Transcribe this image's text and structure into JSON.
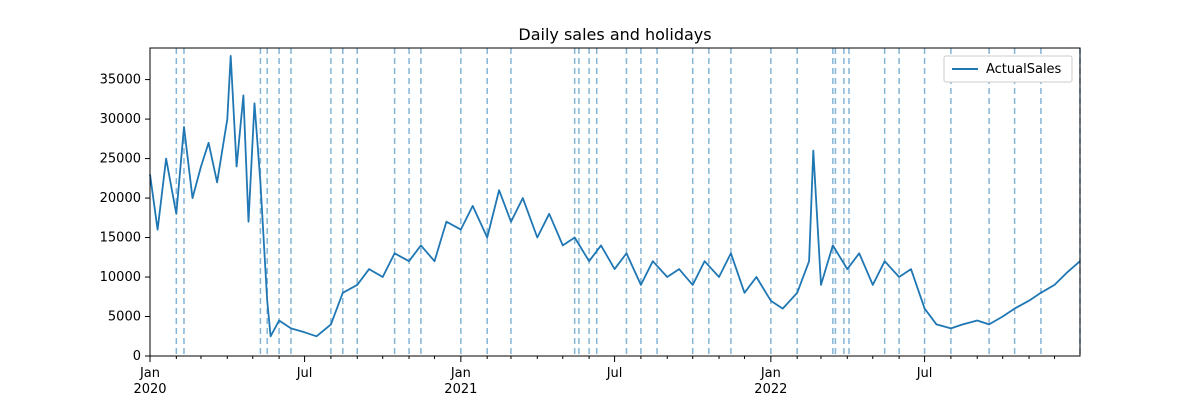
{
  "chart_data": {
    "type": "line",
    "title": "Daily sales and holidays",
    "xlabel": "",
    "ylabel": "",
    "x_range": [
      "2020-01-01",
      "2022-12-31"
    ],
    "ylim": [
      0,
      39000
    ],
    "y_ticks": [
      0,
      5000,
      10000,
      15000,
      20000,
      25000,
      30000,
      35000
    ],
    "y_tick_labels": [
      "0",
      "5000",
      "10000",
      "15000",
      "20000",
      "25000",
      "30000",
      "35000"
    ],
    "x_major_ticks": [
      {
        "date": "2020-01-01",
        "label": "Jan",
        "year": "2020"
      },
      {
        "date": "2020-07-01",
        "label": "Jul",
        "year": ""
      },
      {
        "date": "2021-01-01",
        "label": "Jan",
        "year": "2021"
      },
      {
        "date": "2021-07-01",
        "label": "Jul",
        "year": ""
      },
      {
        "date": "2022-01-01",
        "label": "Jan",
        "year": "2022"
      },
      {
        "date": "2022-07-01",
        "label": "Jul",
        "year": ""
      }
    ],
    "grid": false,
    "legend": {
      "placement": "top-right",
      "entries": [
        "ActualSales"
      ]
    },
    "series": [
      {
        "name": "ActualSales",
        "color": "#1f77b4",
        "points": [
          [
            "2020-01-01",
            23000
          ],
          [
            "2020-01-10",
            16000
          ],
          [
            "2020-01-20",
            25000
          ],
          [
            "2020-02-01",
            18000
          ],
          [
            "2020-02-10",
            29000
          ],
          [
            "2020-02-20",
            20000
          ],
          [
            "2020-03-01",
            24000
          ],
          [
            "2020-03-10",
            27000
          ],
          [
            "2020-03-20",
            22000
          ],
          [
            "2020-04-01",
            30000
          ],
          [
            "2020-04-05",
            38000
          ],
          [
            "2020-04-12",
            24000
          ],
          [
            "2020-04-20",
            33000
          ],
          [
            "2020-04-26",
            17000
          ],
          [
            "2020-05-03",
            32000
          ],
          [
            "2020-05-10",
            22000
          ],
          [
            "2020-05-18",
            7000
          ],
          [
            "2020-05-22",
            2500
          ],
          [
            "2020-06-01",
            4500
          ],
          [
            "2020-06-15",
            3500
          ],
          [
            "2020-07-01",
            3000
          ],
          [
            "2020-07-15",
            2500
          ],
          [
            "2020-08-01",
            4000
          ],
          [
            "2020-08-15",
            8000
          ],
          [
            "2020-09-01",
            9000
          ],
          [
            "2020-09-15",
            11000
          ],
          [
            "2020-10-01",
            10000
          ],
          [
            "2020-10-15",
            13000
          ],
          [
            "2020-11-01",
            12000
          ],
          [
            "2020-11-15",
            14000
          ],
          [
            "2020-12-01",
            12000
          ],
          [
            "2020-12-15",
            17000
          ],
          [
            "2021-01-01",
            16000
          ],
          [
            "2021-01-15",
            19000
          ],
          [
            "2021-02-01",
            15000
          ],
          [
            "2021-02-15",
            21000
          ],
          [
            "2021-03-01",
            17000
          ],
          [
            "2021-03-15",
            20000
          ],
          [
            "2021-04-01",
            15000
          ],
          [
            "2021-04-15",
            18000
          ],
          [
            "2021-05-01",
            14000
          ],
          [
            "2021-05-15",
            15000
          ],
          [
            "2021-06-01",
            12000
          ],
          [
            "2021-06-15",
            14000
          ],
          [
            "2021-07-01",
            11000
          ],
          [
            "2021-07-15",
            13000
          ],
          [
            "2021-08-01",
            9000
          ],
          [
            "2021-08-15",
            12000
          ],
          [
            "2021-09-01",
            10000
          ],
          [
            "2021-09-15",
            11000
          ],
          [
            "2021-10-01",
            9000
          ],
          [
            "2021-10-15",
            12000
          ],
          [
            "2021-11-01",
            10000
          ],
          [
            "2021-11-15",
            13000
          ],
          [
            "2021-12-01",
            8000
          ],
          [
            "2021-12-15",
            10000
          ],
          [
            "2022-01-01",
            7000
          ],
          [
            "2022-01-15",
            6000
          ],
          [
            "2022-02-01",
            8000
          ],
          [
            "2022-02-15",
            12000
          ],
          [
            "2022-02-20",
            26000
          ],
          [
            "2022-03-01",
            9000
          ],
          [
            "2022-03-15",
            14000
          ],
          [
            "2022-04-01",
            11000
          ],
          [
            "2022-04-15",
            13000
          ],
          [
            "2022-05-01",
            9000
          ],
          [
            "2022-05-15",
            12000
          ],
          [
            "2022-06-01",
            10000
          ],
          [
            "2022-06-15",
            11000
          ],
          [
            "2022-07-01",
            6000
          ],
          [
            "2022-07-15",
            4000
          ],
          [
            "2022-08-01",
            3500
          ],
          [
            "2022-08-15",
            4000
          ],
          [
            "2022-09-01",
            4500
          ],
          [
            "2022-09-15",
            4000
          ],
          [
            "2022-10-01",
            5000
          ],
          [
            "2022-10-15",
            6000
          ],
          [
            "2022-11-01",
            7000
          ],
          [
            "2022-11-15",
            8000
          ],
          [
            "2022-12-01",
            9000
          ],
          [
            "2022-12-15",
            10500
          ],
          [
            "2022-12-31",
            12000
          ]
        ]
      }
    ],
    "holiday_lines": [
      "2020-02-01",
      "2020-02-10",
      "2020-05-10",
      "2020-05-18",
      "2020-06-01",
      "2020-06-15",
      "2020-08-01",
      "2020-08-15",
      "2020-09-01",
      "2020-10-15",
      "2020-11-01",
      "2020-11-15",
      "2021-01-01",
      "2021-02-01",
      "2021-03-01",
      "2021-05-15",
      "2021-05-20",
      "2021-06-01",
      "2021-06-10",
      "2021-07-15",
      "2021-08-01",
      "2021-08-20",
      "2021-10-01",
      "2021-10-20",
      "2021-11-15",
      "2022-01-01",
      "2022-02-01",
      "2022-03-15",
      "2022-03-18",
      "2022-03-28",
      "2022-04-03",
      "2022-05-15",
      "2022-06-01",
      "2022-07-01",
      "2022-08-01",
      "2022-09-15",
      "2022-10-15",
      "2022-11-15",
      "2022-12-31"
    ],
    "holiday_style": {
      "color": "#1f77b4",
      "dash": "dashed",
      "opacity": 0.55
    }
  }
}
